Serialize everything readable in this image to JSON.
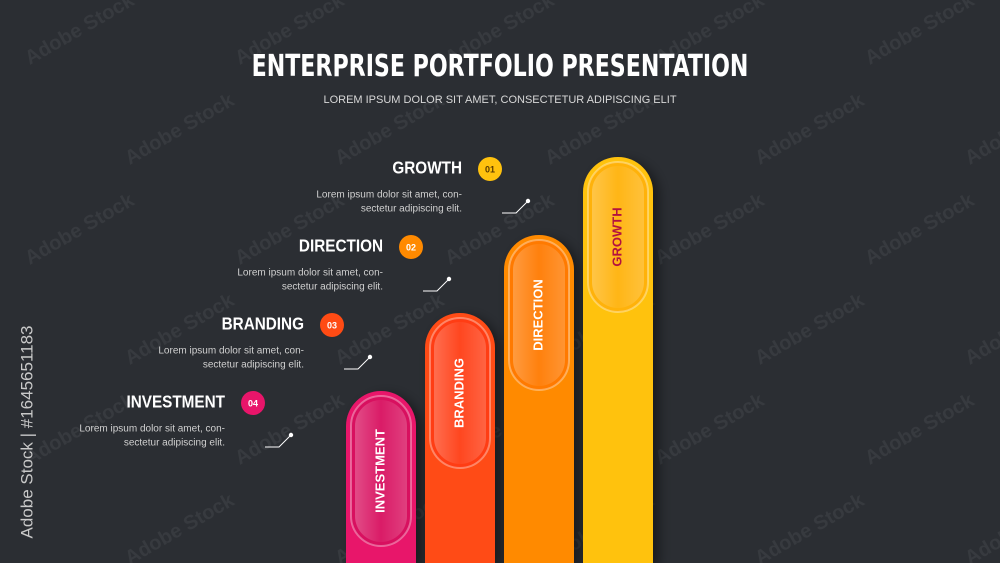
{
  "header": {
    "title": "ENTERPRISE PORTFOLIO PRESENTATION",
    "subtitle": "LOREM IPSUM DOLOR SIT AMET, CONSECTETUR ADIPISCING ELIT"
  },
  "items": [
    {
      "label": "GROWTH",
      "number": "01",
      "description": [
        "Lorem ipsum dolor sit amet, con-",
        "sectetur adipiscing elit."
      ]
    },
    {
      "label": "DIRECTION",
      "number": "02",
      "description": [
        "Lorem ipsum dolor sit amet, con-",
        "sectetur adipiscing elit."
      ]
    },
    {
      "label": "BRANDING",
      "number": "03",
      "description": [
        "Lorem ipsum dolor sit amet, con-",
        "sectetur adipiscing elit."
      ]
    },
    {
      "label": "INVESTMENT",
      "number": "04",
      "description": [
        "Lorem ipsum dolor sit amet, con-",
        "sectetur adipiscing elit."
      ]
    }
  ],
  "watermark": "Adobe Stock",
  "stock_id": "Adobe Stock | #1645651183"
}
